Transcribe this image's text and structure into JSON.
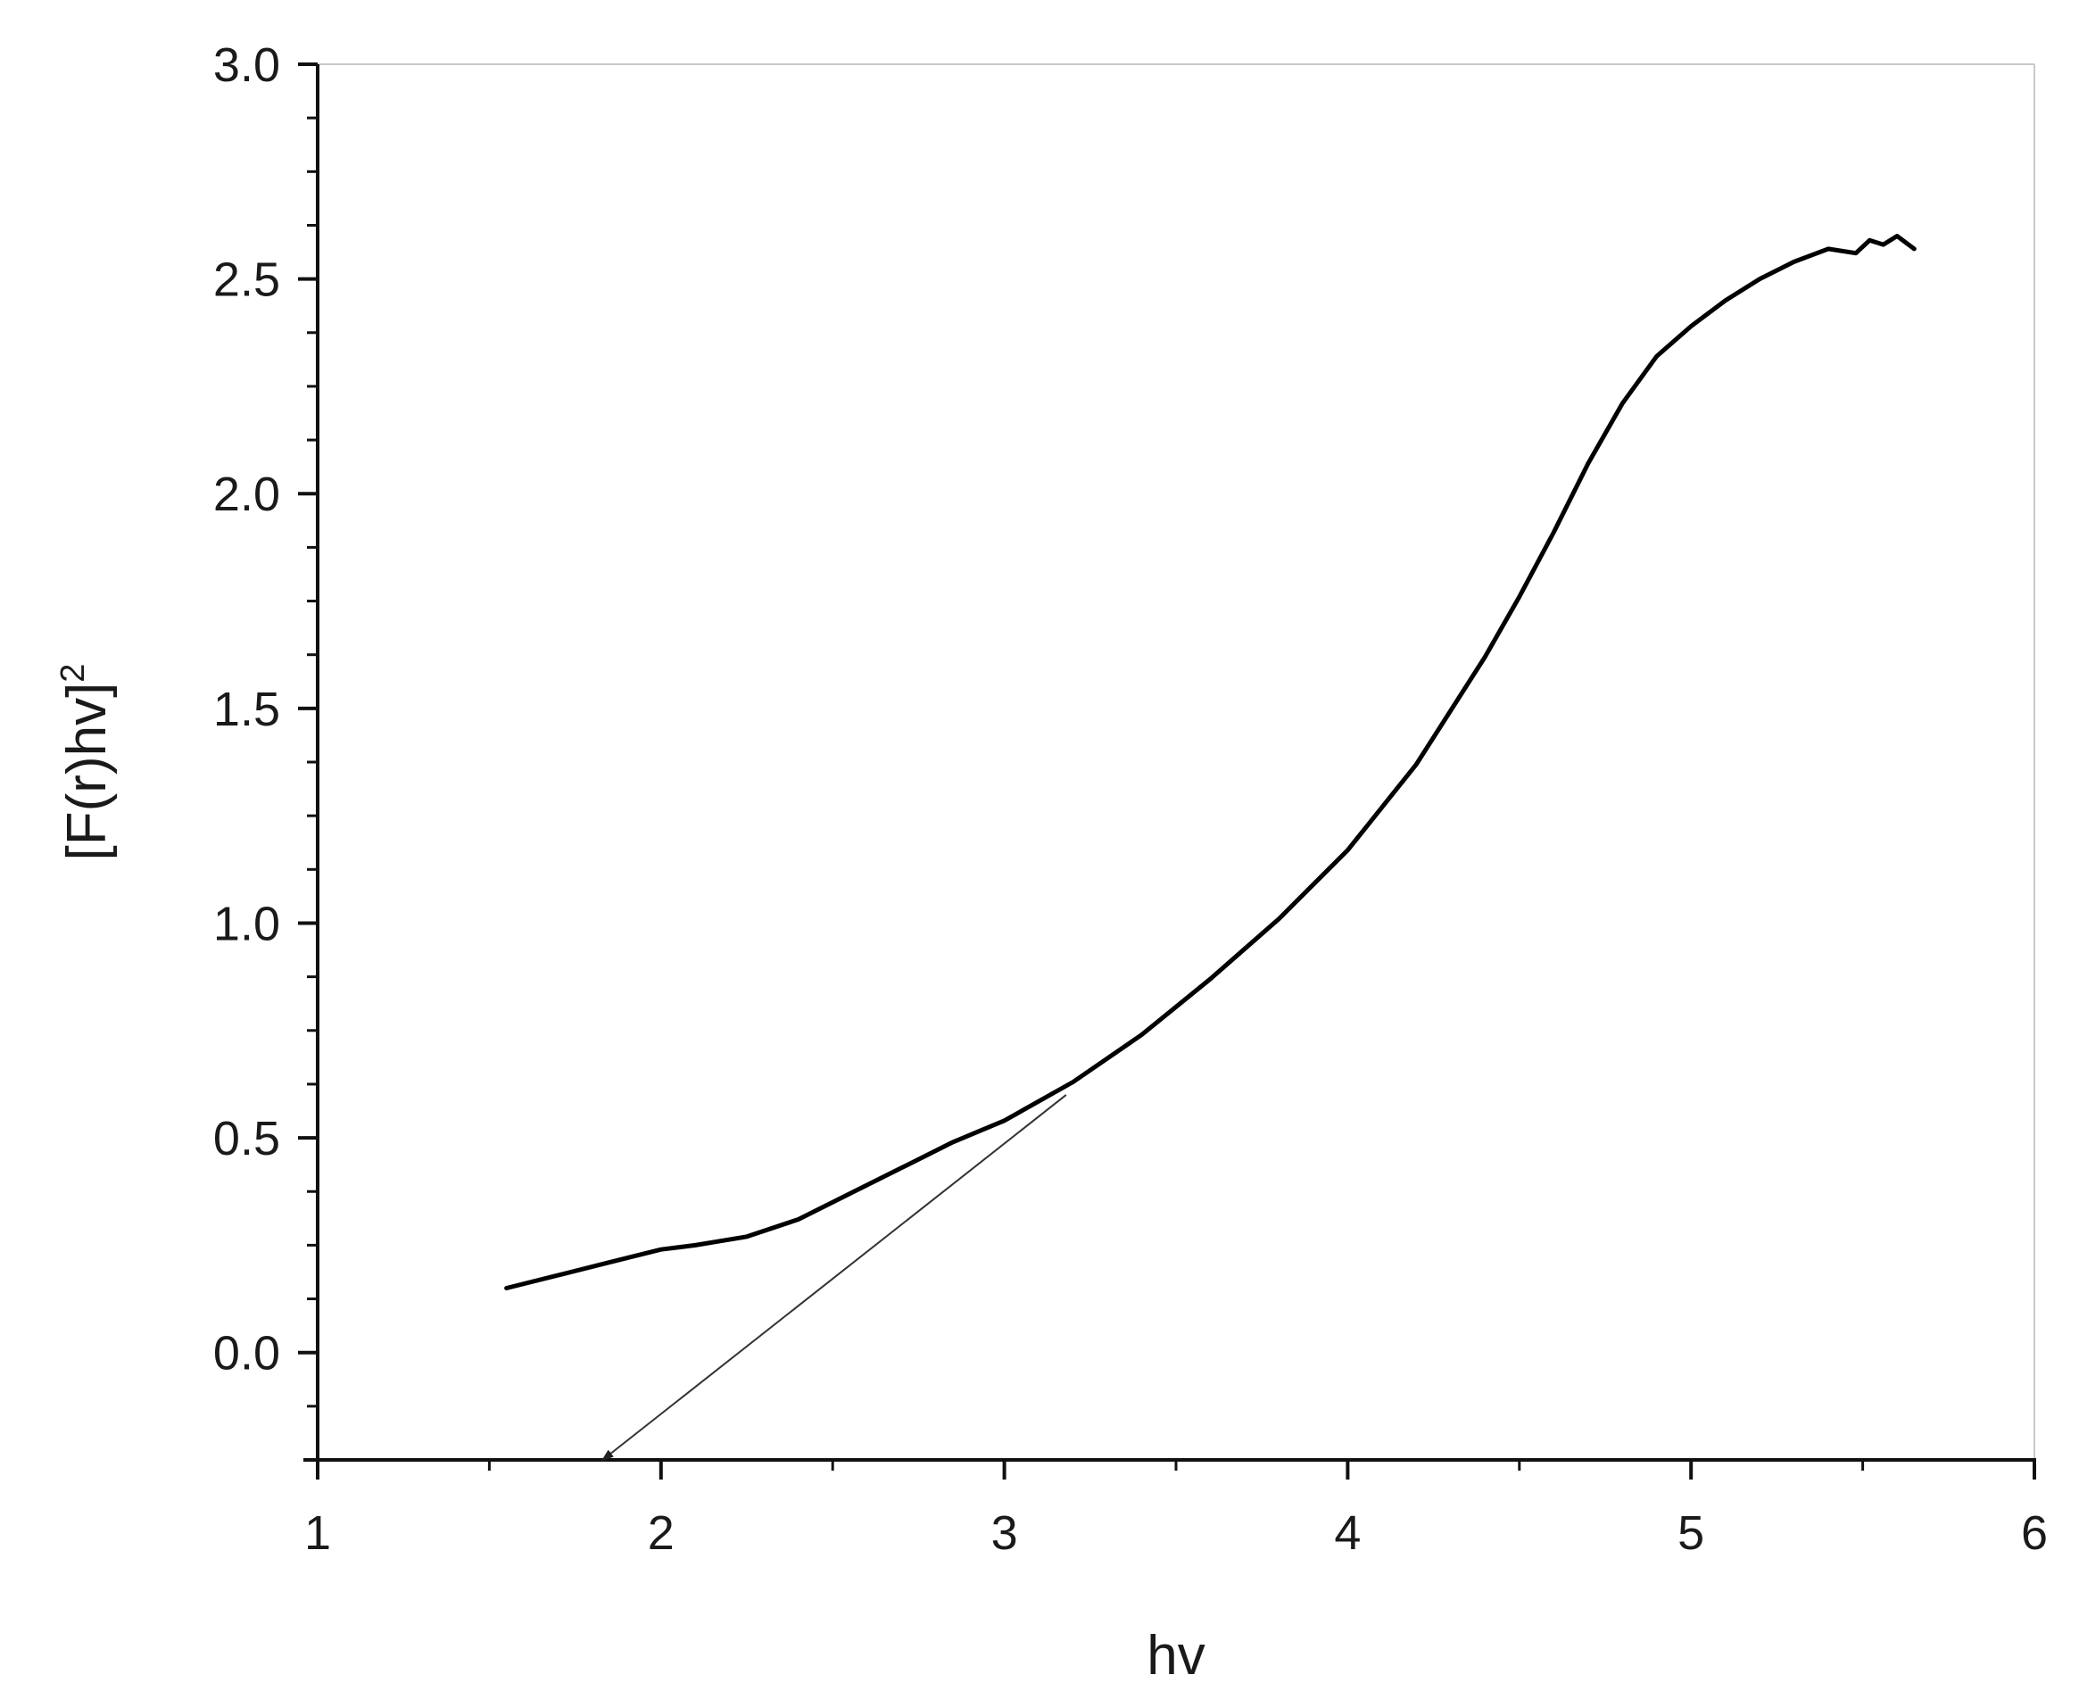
{
  "chart_data": {
    "type": "line",
    "title": "",
    "xlabel": "hv",
    "ylabel": {
      "main": "[F(r)hv]",
      "superscript": "2"
    },
    "xlim": [
      1,
      6
    ],
    "ylim": [
      -0.25,
      3.0
    ],
    "x_ticks": [
      "1",
      "2",
      "3",
      "4",
      "5",
      "6"
    ],
    "y_ticks": [
      "0.0",
      "0.5",
      "1.0",
      "1.5",
      "2.0",
      "2.5",
      "3.0"
    ],
    "series": [
      {
        "x": [
          1.55,
          1.7,
          1.85,
          2.0,
          2.1,
          2.25,
          2.4,
          2.55,
          2.7,
          2.85,
          3.0,
          3.2,
          3.4,
          3.6,
          3.8,
          4.0,
          4.2,
          4.4,
          4.5,
          4.6,
          4.7,
          4.8,
          4.9,
          5.0,
          5.1,
          5.2,
          5.3,
          5.4,
          5.48,
          5.52,
          5.56,
          5.6,
          5.65
        ],
        "y": [
          0.15,
          0.18,
          0.21,
          0.24,
          0.25,
          0.27,
          0.31,
          0.37,
          0.43,
          0.49,
          0.54,
          0.63,
          0.74,
          0.87,
          1.01,
          1.17,
          1.37,
          1.62,
          1.76,
          1.91,
          2.07,
          2.21,
          2.32,
          2.39,
          2.45,
          2.5,
          2.54,
          2.57,
          2.56,
          2.59,
          2.58,
          2.6,
          2.57
        ],
        "color": "#000000"
      }
    ],
    "annotations": [
      {
        "type": "tangent-arrow",
        "from": [
          3.18,
          0.6
        ],
        "to": [
          1.83,
          -0.25
        ],
        "color": "#333333"
      }
    ],
    "grid": false,
    "legend": "none"
  }
}
